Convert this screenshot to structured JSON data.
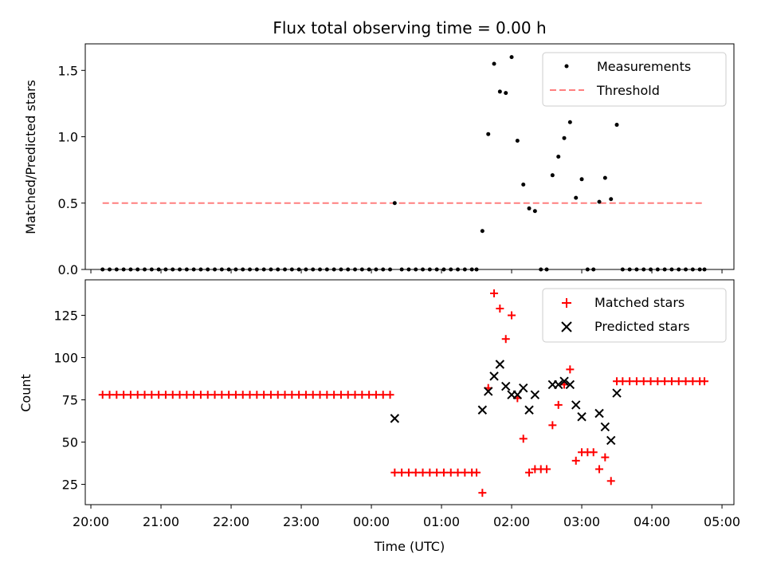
{
  "chart_data": [
    {
      "type": "scatter",
      "title": "Flux total observing time = 0.00 h",
      "xlabel": "",
      "ylabel": "Matched/Predicted stars",
      "ylim": [
        0,
        1.7
      ],
      "yticks": [
        0.0,
        0.5,
        1.0,
        1.5
      ],
      "ytick_labels": [
        "0.0",
        "0.5",
        "1.0",
        "1.5"
      ],
      "legend_position": "top-right",
      "series": [
        {
          "name": "Measurements",
          "marker": "dot",
          "color": "#000000",
          "points": [
            [
              20.167,
              0
            ],
            [
              20.267,
              0
            ],
            [
              20.367,
              0
            ],
            [
              20.467,
              0
            ],
            [
              20.567,
              0
            ],
            [
              20.667,
              0
            ],
            [
              20.767,
              0
            ],
            [
              20.867,
              0
            ],
            [
              20.967,
              0
            ],
            [
              21.067,
              0
            ],
            [
              21.167,
              0
            ],
            [
              21.267,
              0
            ],
            [
              21.367,
              0
            ],
            [
              21.467,
              0
            ],
            [
              21.567,
              0
            ],
            [
              21.667,
              0
            ],
            [
              21.767,
              0
            ],
            [
              21.867,
              0
            ],
            [
              21.967,
              0
            ],
            [
              22.067,
              0
            ],
            [
              22.167,
              0
            ],
            [
              22.267,
              0
            ],
            [
              22.367,
              0
            ],
            [
              22.467,
              0
            ],
            [
              22.567,
              0
            ],
            [
              22.667,
              0
            ],
            [
              22.767,
              0
            ],
            [
              22.867,
              0
            ],
            [
              22.967,
              0
            ],
            [
              23.067,
              0
            ],
            [
              23.167,
              0
            ],
            [
              23.267,
              0
            ],
            [
              23.367,
              0
            ],
            [
              23.467,
              0
            ],
            [
              23.567,
              0
            ],
            [
              23.667,
              0
            ],
            [
              23.767,
              0
            ],
            [
              23.867,
              0
            ],
            [
              23.967,
              0
            ],
            [
              24.067,
              0
            ],
            [
              24.167,
              0
            ],
            [
              24.267,
              0
            ],
            [
              24.333,
              0.5
            ],
            [
              24.433,
              0
            ],
            [
              24.533,
              0
            ],
            [
              24.633,
              0
            ],
            [
              24.733,
              0
            ],
            [
              24.833,
              0
            ],
            [
              24.933,
              0
            ],
            [
              25.033,
              0
            ],
            [
              25.133,
              0
            ],
            [
              25.233,
              0
            ],
            [
              25.333,
              0
            ],
            [
              25.433,
              0
            ],
            [
              25.5,
              0
            ],
            [
              25.583,
              0.29
            ],
            [
              25.667,
              1.02
            ],
            [
              25.75,
              1.55
            ],
            [
              25.833,
              1.34
            ],
            [
              25.917,
              1.33
            ],
            [
              26.0,
              1.6
            ],
            [
              26.083,
              0.97
            ],
            [
              26.167,
              0.64
            ],
            [
              26.25,
              0.46
            ],
            [
              26.333,
              0.44
            ],
            [
              26.417,
              0
            ],
            [
              26.5,
              0
            ],
            [
              26.583,
              0.71
            ],
            [
              26.667,
              0.85
            ],
            [
              26.75,
              0.99
            ],
            [
              26.833,
              1.11
            ],
            [
              26.917,
              0.54
            ],
            [
              27.0,
              0.68
            ],
            [
              27.083,
              0
            ],
            [
              27.167,
              0
            ],
            [
              27.25,
              0.51
            ],
            [
              27.333,
              0.69
            ],
            [
              27.417,
              0.53
            ],
            [
              27.5,
              1.09
            ],
            [
              27.583,
              0
            ],
            [
              27.683,
              0
            ],
            [
              27.783,
              0
            ],
            [
              27.883,
              0
            ],
            [
              27.983,
              0
            ],
            [
              28.083,
              0
            ],
            [
              28.183,
              0
            ],
            [
              28.283,
              0
            ],
            [
              28.383,
              0
            ],
            [
              28.483,
              0
            ],
            [
              28.583,
              0
            ],
            [
              28.683,
              0
            ],
            [
              28.75,
              0
            ]
          ]
        },
        {
          "name": "Threshold",
          "marker": "dashed-line",
          "color": "#ff7f7f",
          "points": [
            [
              20.167,
              0.5
            ],
            [
              28.75,
              0.5
            ]
          ]
        }
      ]
    },
    {
      "type": "scatter",
      "title": "",
      "xlabel": "Time (UTC)",
      "ylabel": "Count",
      "ylim": [
        13,
        146
      ],
      "yticks": [
        25,
        50,
        75,
        100,
        125
      ],
      "ytick_labels": [
        "25",
        "50",
        "75",
        "100",
        "125"
      ],
      "xlim": [
        19.92,
        29.17
      ],
      "xticks": [
        20,
        21,
        22,
        23,
        24,
        25,
        26,
        27,
        28,
        29
      ],
      "xtick_labels": [
        "20:00",
        "21:00",
        "22:00",
        "23:00",
        "00:00",
        "01:00",
        "02:00",
        "03:00",
        "04:00",
        "05:00"
      ],
      "legend_position": "top-right",
      "series": [
        {
          "name": "Matched stars",
          "marker": "plus",
          "color": "#ff0000",
          "points": [
            [
              20.167,
              78
            ],
            [
              20.267,
              78
            ],
            [
              20.367,
              78
            ],
            [
              20.467,
              78
            ],
            [
              20.567,
              78
            ],
            [
              20.667,
              78
            ],
            [
              20.767,
              78
            ],
            [
              20.867,
              78
            ],
            [
              20.967,
              78
            ],
            [
              21.067,
              78
            ],
            [
              21.167,
              78
            ],
            [
              21.267,
              78
            ],
            [
              21.367,
              78
            ],
            [
              21.467,
              78
            ],
            [
              21.567,
              78
            ],
            [
              21.667,
              78
            ],
            [
              21.767,
              78
            ],
            [
              21.867,
              78
            ],
            [
              21.967,
              78
            ],
            [
              22.067,
              78
            ],
            [
              22.167,
              78
            ],
            [
              22.267,
              78
            ],
            [
              22.367,
              78
            ],
            [
              22.467,
              78
            ],
            [
              22.567,
              78
            ],
            [
              22.667,
              78
            ],
            [
              22.767,
              78
            ],
            [
              22.867,
              78
            ],
            [
              22.967,
              78
            ],
            [
              23.067,
              78
            ],
            [
              23.167,
              78
            ],
            [
              23.267,
              78
            ],
            [
              23.367,
              78
            ],
            [
              23.467,
              78
            ],
            [
              23.567,
              78
            ],
            [
              23.667,
              78
            ],
            [
              23.767,
              78
            ],
            [
              23.867,
              78
            ],
            [
              23.967,
              78
            ],
            [
              24.067,
              78
            ],
            [
              24.167,
              78
            ],
            [
              24.267,
              78
            ],
            [
              24.333,
              32
            ],
            [
              24.433,
              32
            ],
            [
              24.533,
              32
            ],
            [
              24.633,
              32
            ],
            [
              24.733,
              32
            ],
            [
              24.833,
              32
            ],
            [
              24.933,
              32
            ],
            [
              25.033,
              32
            ],
            [
              25.133,
              32
            ],
            [
              25.233,
              32
            ],
            [
              25.333,
              32
            ],
            [
              25.433,
              32
            ],
            [
              25.5,
              32
            ],
            [
              25.583,
              20
            ],
            [
              25.667,
              82
            ],
            [
              25.75,
              138
            ],
            [
              25.833,
              129
            ],
            [
              25.917,
              111
            ],
            [
              26.0,
              125
            ],
            [
              26.083,
              76
            ],
            [
              26.167,
              52
            ],
            [
              26.25,
              32
            ],
            [
              26.333,
              34
            ],
            [
              26.417,
              34
            ],
            [
              26.5,
              34
            ],
            [
              26.583,
              60
            ],
            [
              26.667,
              72
            ],
            [
              26.75,
              84
            ],
            [
              26.833,
              93
            ],
            [
              26.917,
              39
            ],
            [
              27.0,
              44
            ],
            [
              27.083,
              44
            ],
            [
              27.167,
              44
            ],
            [
              27.25,
              34
            ],
            [
              27.333,
              41
            ],
            [
              27.417,
              27
            ],
            [
              27.5,
              86
            ],
            [
              27.583,
              86
            ],
            [
              27.683,
              86
            ],
            [
              27.783,
              86
            ],
            [
              27.883,
              86
            ],
            [
              27.983,
              86
            ],
            [
              28.083,
              86
            ],
            [
              28.183,
              86
            ],
            [
              28.283,
              86
            ],
            [
              28.383,
              86
            ],
            [
              28.483,
              86
            ],
            [
              28.583,
              86
            ],
            [
              28.683,
              86
            ],
            [
              28.75,
              86
            ]
          ]
        },
        {
          "name": "Predicted stars",
          "marker": "x",
          "color": "#000000",
          "points": [
            [
              24.333,
              64
            ],
            [
              25.583,
              69
            ],
            [
              25.667,
              80
            ],
            [
              25.75,
              89
            ],
            [
              25.833,
              96
            ],
            [
              25.917,
              83
            ],
            [
              26.0,
              78
            ],
            [
              26.083,
              78
            ],
            [
              26.167,
              82
            ],
            [
              26.25,
              69
            ],
            [
              26.333,
              78
            ],
            [
              26.583,
              84
            ],
            [
              26.667,
              84
            ],
            [
              26.75,
              86
            ],
            [
              26.833,
              84
            ],
            [
              26.917,
              72
            ],
            [
              27.0,
              65
            ],
            [
              27.25,
              67
            ],
            [
              27.333,
              59
            ],
            [
              27.417,
              51
            ],
            [
              27.5,
              79
            ]
          ]
        }
      ]
    }
  ]
}
